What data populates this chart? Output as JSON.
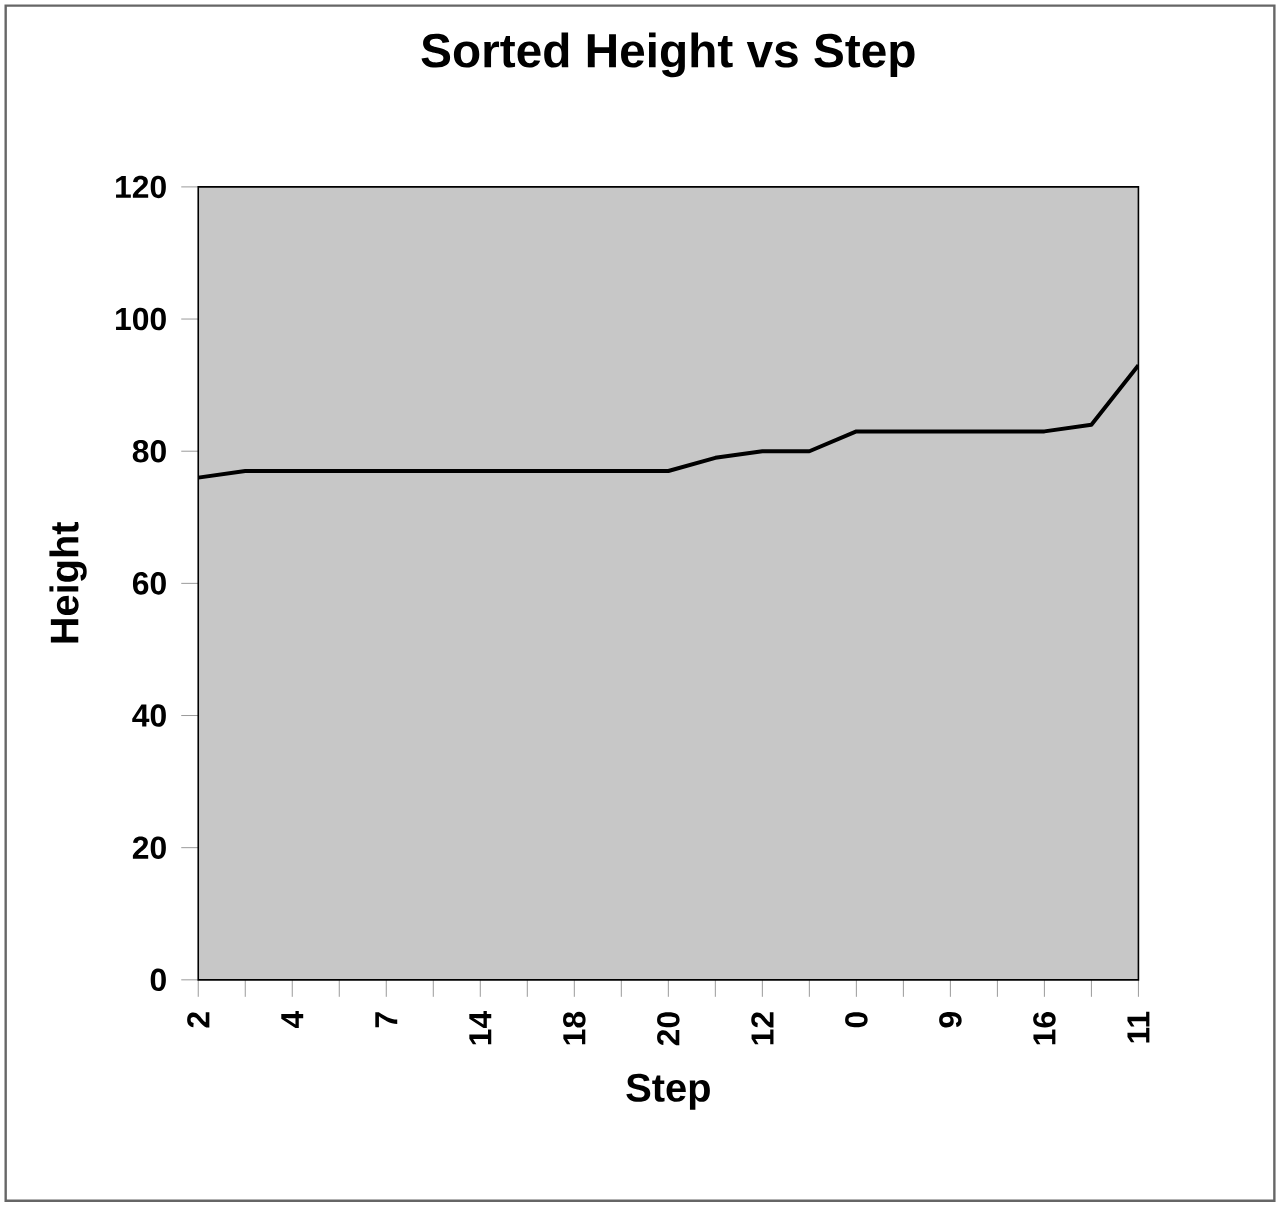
{
  "chart_data": {
    "type": "line",
    "title": "Sorted Height vs Step",
    "xlabel": "Step",
    "ylabel": "Height",
    "categories": [
      "2",
      null,
      "4",
      null,
      "7",
      null,
      "14",
      null,
      "18",
      null,
      "20",
      null,
      "12",
      null,
      "0",
      null,
      "9",
      null,
      "16",
      null,
      "11"
    ],
    "values": [
      76,
      77,
      77,
      77,
      77,
      77,
      77,
      77,
      77,
      77,
      77,
      79,
      80,
      80,
      83,
      83,
      83,
      83,
      83,
      84,
      93
    ],
    "color": "#000000",
    "ylim": [
      0,
      120
    ],
    "yticks": [
      0,
      20,
      40,
      60,
      80,
      100,
      120
    ],
    "grid": false,
    "marker": "none",
    "line_style": "solid"
  }
}
